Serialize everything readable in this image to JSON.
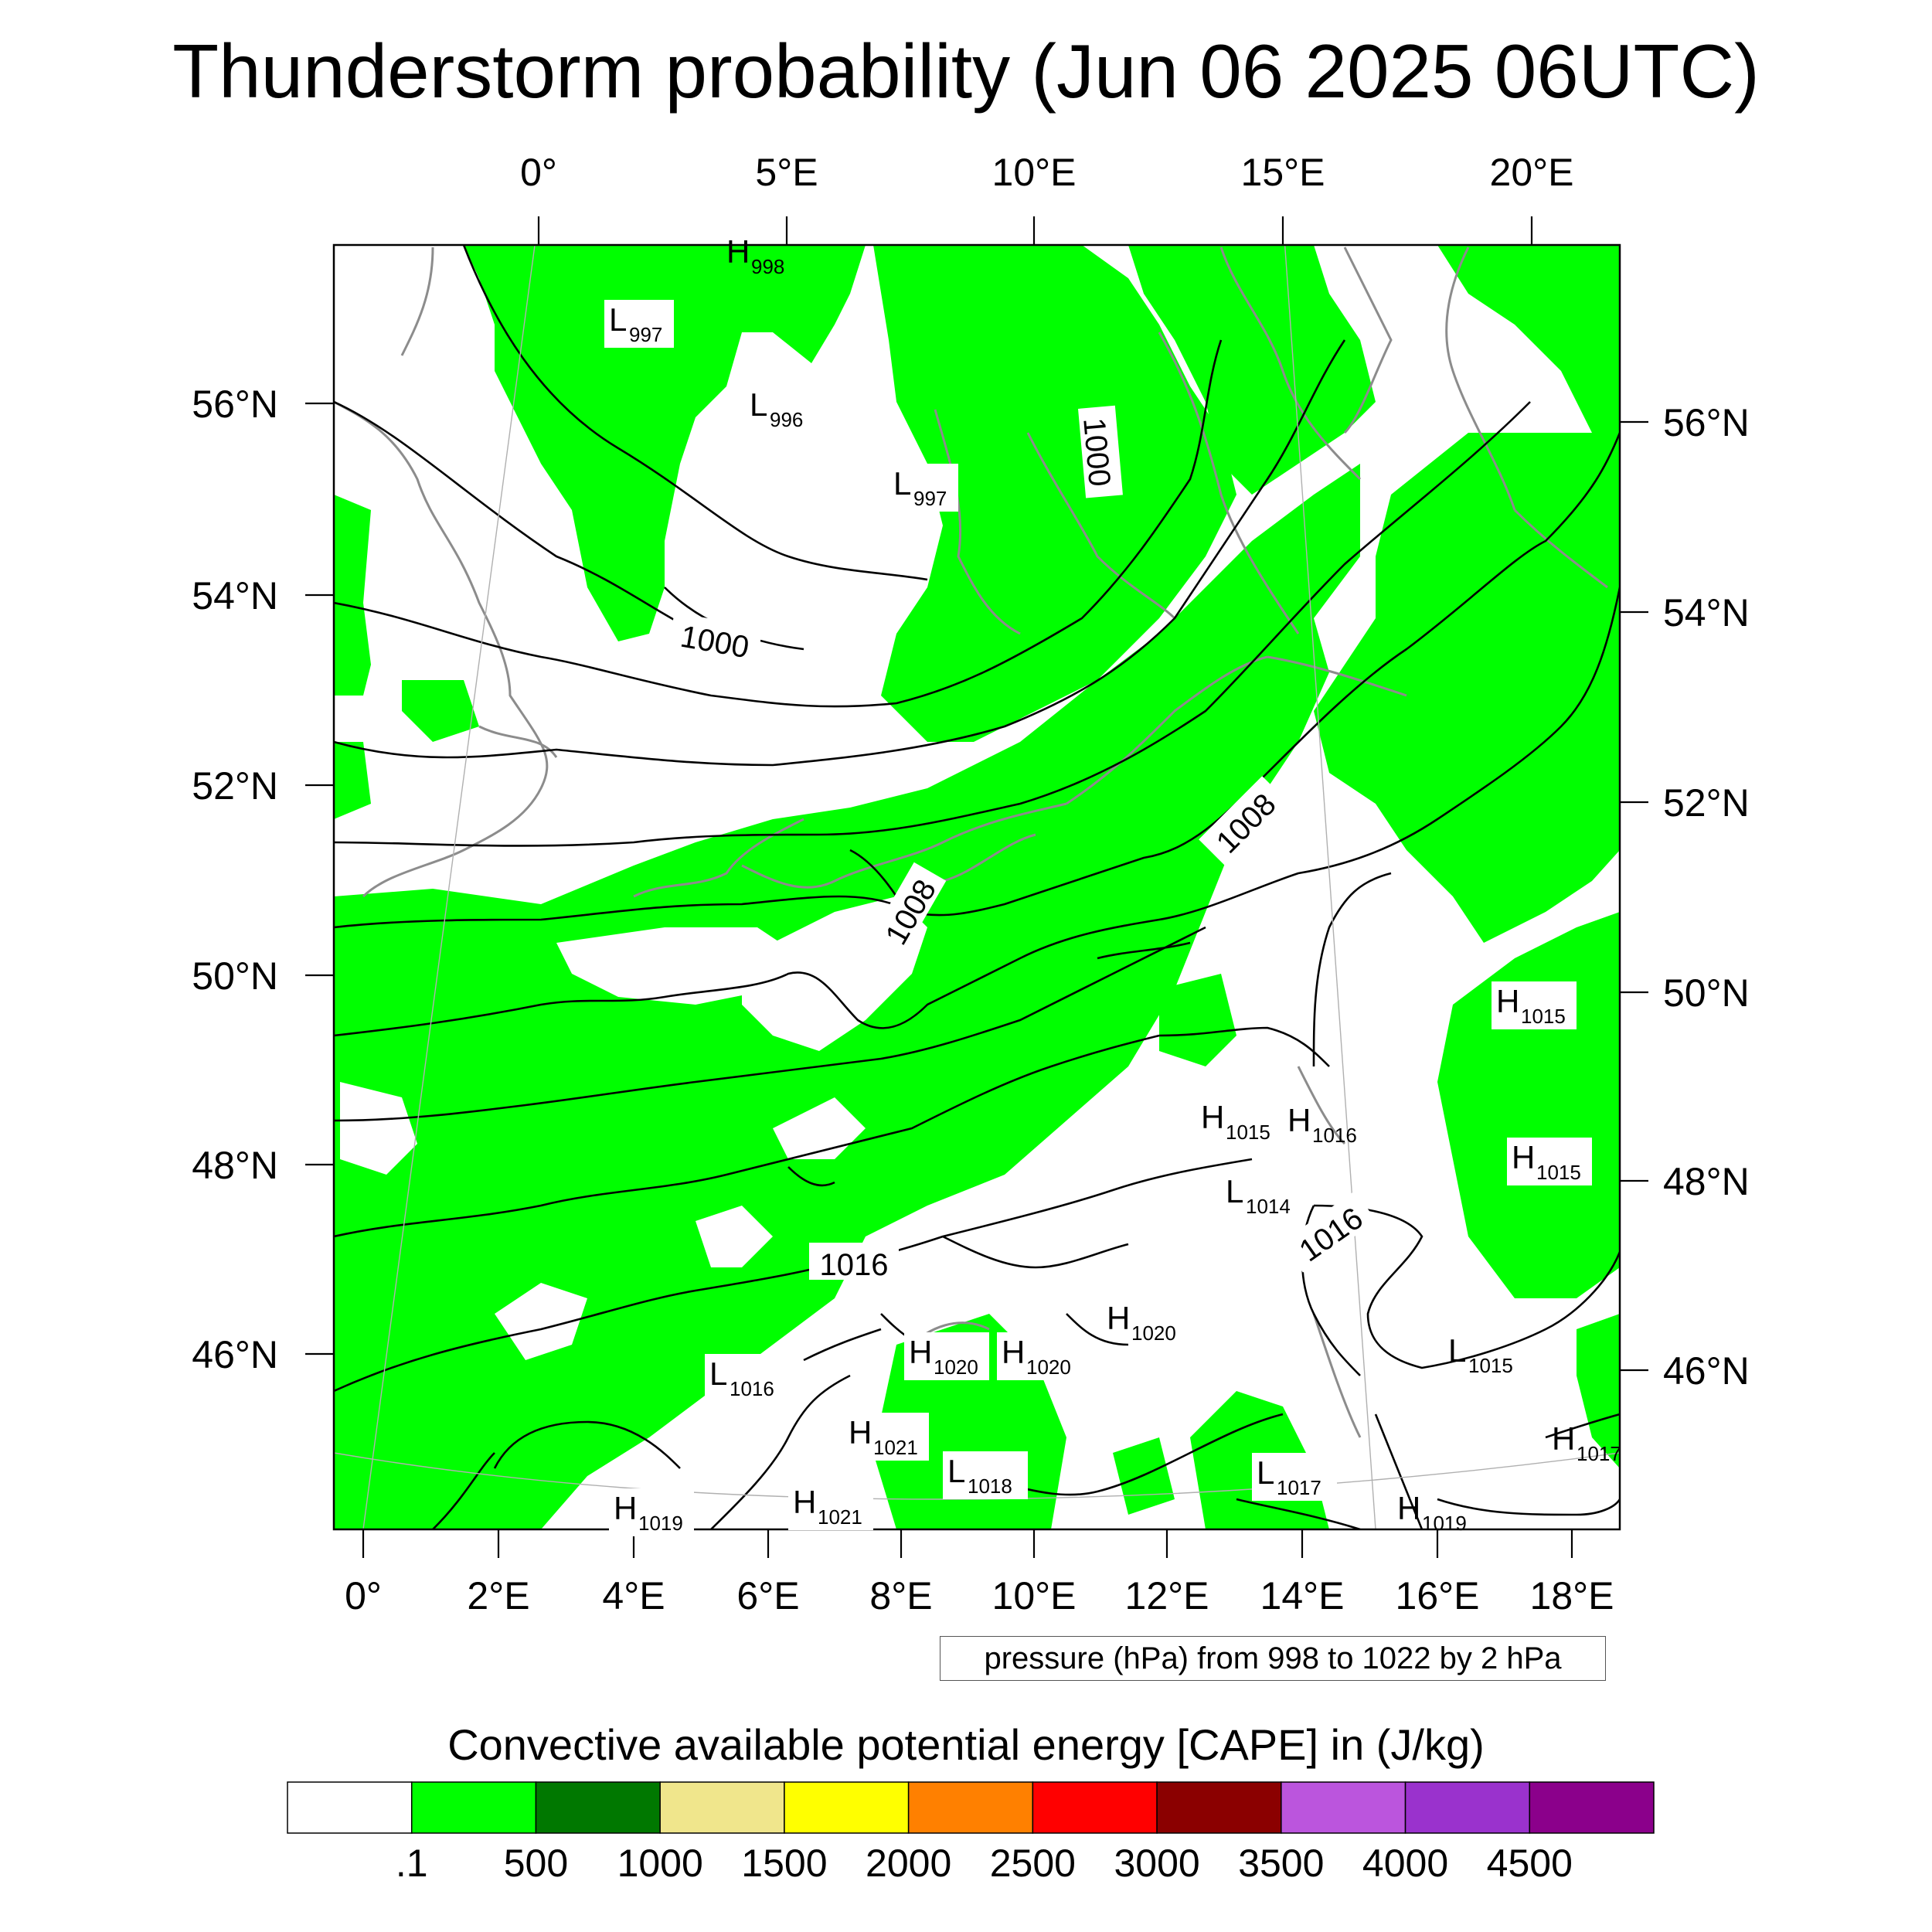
{
  "title": "Thunderstorm probability (Jun 06 2025 06UTC)",
  "map": {
    "top_lon_labels": [
      "0°",
      "5°E",
      "10°E",
      "15°E",
      "20°E"
    ],
    "bottom_lon_labels": [
      "0°",
      "2°E",
      "4°E",
      "6°E",
      "8°E",
      "10°E",
      "12°E",
      "14°E",
      "16°E",
      "18°E"
    ],
    "left_lat_labels": [
      "56°N",
      "54°N",
      "52°N",
      "50°N",
      "48°N",
      "46°N"
    ],
    "right_lat_labels": [
      "56°N",
      "54°N",
      "52°N",
      "50°N",
      "48°N",
      "46°N"
    ],
    "isobar_labels": [
      "1000",
      "1000",
      "1008",
      "1008",
      "1016",
      "1016"
    ],
    "pressure_centers": [
      {
        "type": "H",
        "value": "998"
      },
      {
        "type": "L",
        "value": "997"
      },
      {
        "type": "L",
        "value": "996"
      },
      {
        "type": "L",
        "value": "997"
      },
      {
        "type": "H",
        "value": "1015"
      },
      {
        "type": "H",
        "value": "1015"
      },
      {
        "type": "H",
        "value": "1016"
      },
      {
        "type": "H",
        "value": "1015"
      },
      {
        "type": "L",
        "value": "1014"
      },
      {
        "type": "H",
        "value": "1020"
      },
      {
        "type": "H",
        "value": "1020"
      },
      {
        "type": "H",
        "value": "1020"
      },
      {
        "type": "L",
        "value": "1016"
      },
      {
        "type": "L",
        "value": "1015"
      },
      {
        "type": "H",
        "value": "1021"
      },
      {
        "type": "L",
        "value": "1018"
      },
      {
        "type": "H",
        "value": "1021"
      },
      {
        "type": "H",
        "value": "1019"
      },
      {
        "type": "L",
        "value": "1017"
      },
      {
        "type": "H",
        "value": "1019"
      },
      {
        "type": "H",
        "value": "1017"
      }
    ],
    "colors": {
      "cape_green": "#00ff00",
      "isobar": "#000000",
      "coastline": "#8c8c8c"
    }
  },
  "contour_note": "pressure (hPa) from 998 to 1022 by 2 hPa",
  "colorbar": {
    "title": "Convective available potential energy [CAPE] in (J/kg)",
    "colors": [
      "#ffffff",
      "#00ff00",
      "#007800",
      "#f0e68c",
      "#ffff00",
      "#ff8000",
      "#ff0000",
      "#8b0000",
      "#bb55dd",
      "#9a32cd",
      "#8b008b"
    ],
    "labels": [
      ".1",
      "500",
      "1000",
      "1500",
      "2000",
      "2500",
      "3000",
      "3500",
      "4000",
      "4500"
    ]
  }
}
